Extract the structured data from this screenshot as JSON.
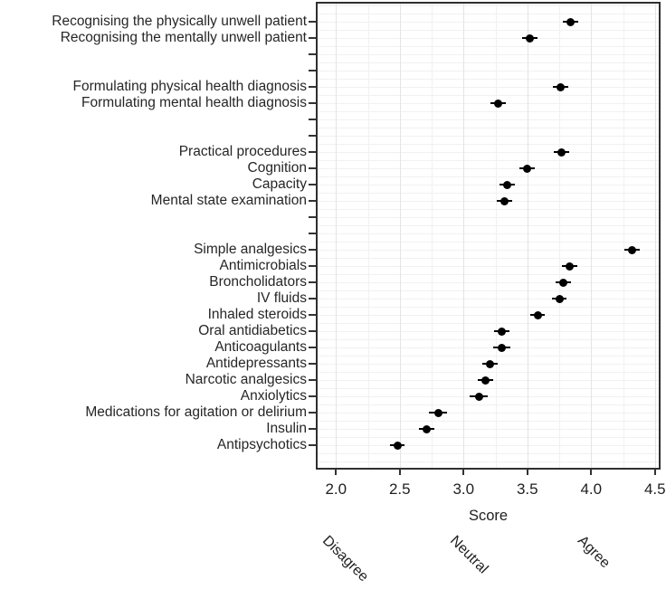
{
  "chart_data": {
    "type": "scatter",
    "subtype": "pointrange-dotplot",
    "title": "",
    "xlabel": "Score",
    "ylabel": "",
    "xlim": [
      1.85,
      4.55
    ],
    "x_ticks": [
      2.0,
      2.5,
      3.0,
      3.5,
      4.0,
      4.5
    ],
    "x_minor_step": 0.25,
    "grid": "on",
    "n_row_slots": 27,
    "secondary_axis_labels": [
      {
        "label": "Disagree",
        "score": 2.0
      },
      {
        "label": "Neutral",
        "score": 3.0
      },
      {
        "label": "Agree",
        "score": 4.0
      }
    ],
    "items": [
      {
        "label": "Recognising the physically unwell patient",
        "slot": 1,
        "score": 3.84,
        "se": 0.06
      },
      {
        "label": "Recognising the mentally unwell patient",
        "slot": 2,
        "score": 3.52,
        "se": 0.06
      },
      {
        "label": "Formulating physical health diagnosis",
        "slot": 5,
        "score": 3.76,
        "se": 0.06
      },
      {
        "label": "Formulating mental health diagnosis",
        "slot": 6,
        "score": 3.27,
        "se": 0.06
      },
      {
        "label": "Practical procedures",
        "slot": 9,
        "score": 3.77,
        "se": 0.06
      },
      {
        "label": "Cognition",
        "slot": 10,
        "score": 3.5,
        "se": 0.06
      },
      {
        "label": "Capacity",
        "slot": 11,
        "score": 3.34,
        "se": 0.06
      },
      {
        "label": "Mental state examination",
        "slot": 12,
        "score": 3.32,
        "se": 0.06
      },
      {
        "label": "Simple analgesics",
        "slot": 15,
        "score": 4.32,
        "se": 0.06
      },
      {
        "label": "Antimicrobials",
        "slot": 16,
        "score": 3.83,
        "se": 0.06
      },
      {
        "label": "Broncholidators",
        "slot": 17,
        "score": 3.78,
        "se": 0.06
      },
      {
        "label": "IV fluids",
        "slot": 18,
        "score": 3.75,
        "se": 0.06
      },
      {
        "label": "Inhaled steroids",
        "slot": 19,
        "score": 3.58,
        "se": 0.06
      },
      {
        "label": "Oral antidiabetics",
        "slot": 20,
        "score": 3.3,
        "se": 0.06
      },
      {
        "label": "Anticoagulants",
        "slot": 21,
        "score": 3.3,
        "se": 0.07
      },
      {
        "label": "Antidepressants",
        "slot": 22,
        "score": 3.21,
        "se": 0.06
      },
      {
        "label": "Narcotic analgesics",
        "slot": 23,
        "score": 3.17,
        "se": 0.06
      },
      {
        "label": "Anxiolytics",
        "slot": 24,
        "score": 3.12,
        "se": 0.07
      },
      {
        "label": "Medications for agitation or delirium",
        "slot": 25,
        "score": 2.8,
        "se": 0.07
      },
      {
        "label": "Insulin",
        "slot": 26,
        "score": 2.71,
        "se": 0.06
      },
      {
        "label": "Antipsychotics",
        "slot": 27,
        "score": 2.48,
        "se": 0.06
      }
    ],
    "colors": {
      "point": "#000000",
      "text": "#262626",
      "axis": "#333333",
      "grid_minor": "#f1f1f1",
      "grid_major": "#e4e4e4",
      "background": "#ffffff"
    }
  }
}
